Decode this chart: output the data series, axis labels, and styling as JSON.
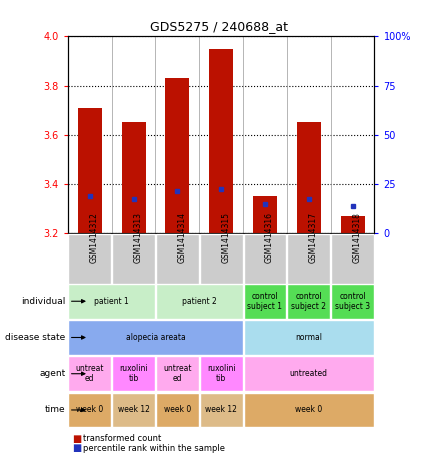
{
  "title": "GDS5275 / 240688_at",
  "samples": [
    "GSM1414312",
    "GSM1414313",
    "GSM1414314",
    "GSM1414315",
    "GSM1414316",
    "GSM1414317",
    "GSM1414318"
  ],
  "red_values": [
    3.71,
    3.65,
    3.83,
    3.95,
    3.35,
    3.65,
    3.27
  ],
  "blue_values": [
    3.35,
    3.34,
    3.37,
    3.38,
    3.32,
    3.34,
    3.31
  ],
  "ylim": [
    3.2,
    4.0
  ],
  "y2lim": [
    0,
    100
  ],
  "yticks": [
    3.2,
    3.4,
    3.6,
    3.8,
    4.0
  ],
  "y2ticks": [
    0,
    25,
    50,
    75,
    100
  ],
  "bar_color": "#bb1100",
  "blue_color": "#2233bb",
  "ind_spans": [
    [
      0,
      2,
      "patient 1"
    ],
    [
      2,
      4,
      "patient 2"
    ],
    [
      4,
      5,
      "control\nsubject 1"
    ],
    [
      5,
      6,
      "control\nsubject 2"
    ],
    [
      6,
      7,
      "control\nsubject 3"
    ]
  ],
  "ind_colors": [
    "#c8eec8",
    "#c8eec8",
    "#55dd55",
    "#55dd55",
    "#55dd55"
  ],
  "dis_spans": [
    [
      0,
      4,
      "alopecia areata"
    ],
    [
      4,
      7,
      "normal"
    ]
  ],
  "dis_colors": [
    "#88aaee",
    "#aaddee"
  ],
  "ag_spans": [
    [
      0,
      1,
      "untreat\ned"
    ],
    [
      1,
      2,
      "ruxolini\ntib"
    ],
    [
      2,
      3,
      "untreat\ned"
    ],
    [
      3,
      4,
      "ruxolini\ntib"
    ],
    [
      4,
      7,
      "untreated"
    ]
  ],
  "ag_colors": [
    "#ffaaee",
    "#ff88ff",
    "#ffaaee",
    "#ff88ff",
    "#ffaaee"
  ],
  "ti_spans": [
    [
      0,
      1,
      "week 0"
    ],
    [
      1,
      2,
      "week 12"
    ],
    [
      2,
      3,
      "week 0"
    ],
    [
      3,
      4,
      "week 12"
    ],
    [
      4,
      7,
      "week 0"
    ]
  ],
  "ti_colors": [
    "#ddaa66",
    "#ddbb88",
    "#ddaa66",
    "#ddbb88",
    "#ddaa66"
  ],
  "legend_red": "transformed count",
  "legend_blue": "percentile rank within the sample"
}
